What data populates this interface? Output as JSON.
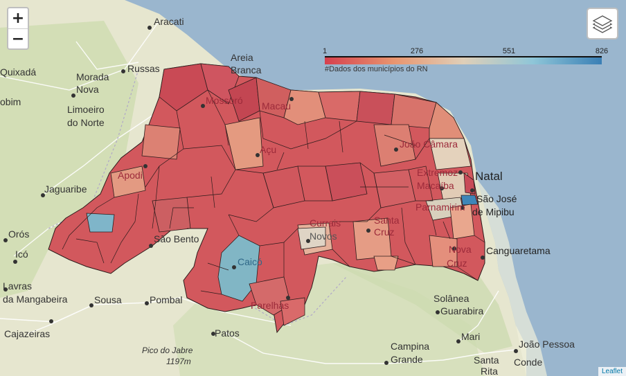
{
  "controls": {
    "zoom_in": "+",
    "zoom_out": "−",
    "layers_icon": "layers-icon"
  },
  "legend": {
    "ticks": [
      "1",
      "276",
      "551",
      "826"
    ],
    "caption": "#Dados dos municípios do RN",
    "colors": {
      "low": "#d6404e",
      "mid": "#e0cfb8",
      "high": "#3a7fb5"
    }
  },
  "attribution": "Leaflet",
  "places": {
    "aracati": "Aracati",
    "areia_branca_1": "Areia",
    "areia_branca_2": "Branca",
    "mossoro": "Mossoró",
    "macau": "Macau",
    "russas": "Russas",
    "morada_nova_1": "Morada",
    "morada_nova_2": "Nova",
    "quixada": "Quixadá",
    "jaguaribara": "obim",
    "limoeiro_1": "Limoeiro",
    "limoeiro_2": "do Norte",
    "jaguaribe": "Jaguaribe",
    "oros": "Orós",
    "ico": "Icó",
    "lavras_1": "Lavras",
    "lavras_2": "da Mangabeira",
    "sousa": "Sousa",
    "pombal": "Pombal",
    "cajazeiras": "Cajazeiras",
    "patos": "Patos",
    "pico_1": "Pico do Jabre",
    "pico_2": "1197m",
    "apodi": "Apodi",
    "acu": "Açu",
    "sao_bento": "São Bento",
    "caico": "Caicó",
    "parelhas": "Parelhas",
    "currais_1": "Currais",
    "currais_2": "Novos",
    "santa_cruz_1": "Santa",
    "santa_cruz_2": "Cruz",
    "joao_camara": "João Câmara",
    "extremoz": "Extremoz",
    "natal": "Natal",
    "macaiba": "Macaíba",
    "parnamirim": "Parnamirim",
    "sao_jose_1": "São José",
    "sao_jose_2": "de Mipibu",
    "nova_cruz_1": "Nova",
    "nova_cruz_2": "Cruz",
    "canguaretama": "Canguaretama",
    "solanea": "Solânea",
    "guarabira": "Guarabira",
    "mari": "Mari",
    "joao_pessoa": "João Pessoa",
    "campina_1": "Campina",
    "campina_2": "Grande",
    "santa_rita_1": "Santa",
    "santa_rita_2": "Rita",
    "conde": "Conde"
  }
}
